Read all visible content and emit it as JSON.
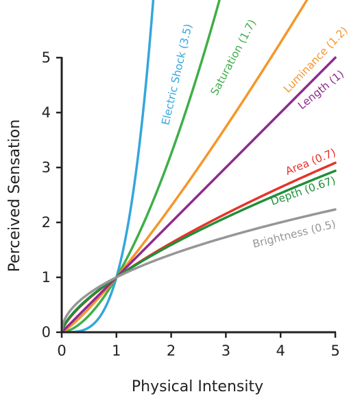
{
  "chart_data": {
    "type": "line",
    "xlabel": "Physical Intensity",
    "ylabel": "Perceived Sensation",
    "xlim": [
      0,
      5
    ],
    "ylim": [
      0,
      5
    ],
    "x_ticks": [
      "0",
      "1",
      "2",
      "3",
      "4",
      "5"
    ],
    "y_ticks": [
      "0",
      "1",
      "2",
      "3",
      "4",
      "5"
    ],
    "grid": false,
    "legend": "none; series labelled directly along the curves",
    "function": "y = x^exponent",
    "series": [
      {
        "name": "Electric Shock (3.5)",
        "exponent": 3.5,
        "color": "#34a6dd"
      },
      {
        "name": "Saturation (1.7)",
        "exponent": 1.7,
        "color": "#3fae49"
      },
      {
        "name": "Luminance (1.2)",
        "exponent": 1.2,
        "color": "#f5962a"
      },
      {
        "name": "Length (1)",
        "exponent": 1.0,
        "color": "#8e2a8f"
      },
      {
        "name": "Area (0.7)",
        "exponent": 0.7,
        "color": "#e5332a"
      },
      {
        "name": "Depth (0.67)",
        "exponent": 0.67,
        "color": "#1f8f3a"
      },
      {
        "name": "Brightness (0.5)",
        "exponent": 0.5,
        "color": "#969696"
      }
    ]
  }
}
